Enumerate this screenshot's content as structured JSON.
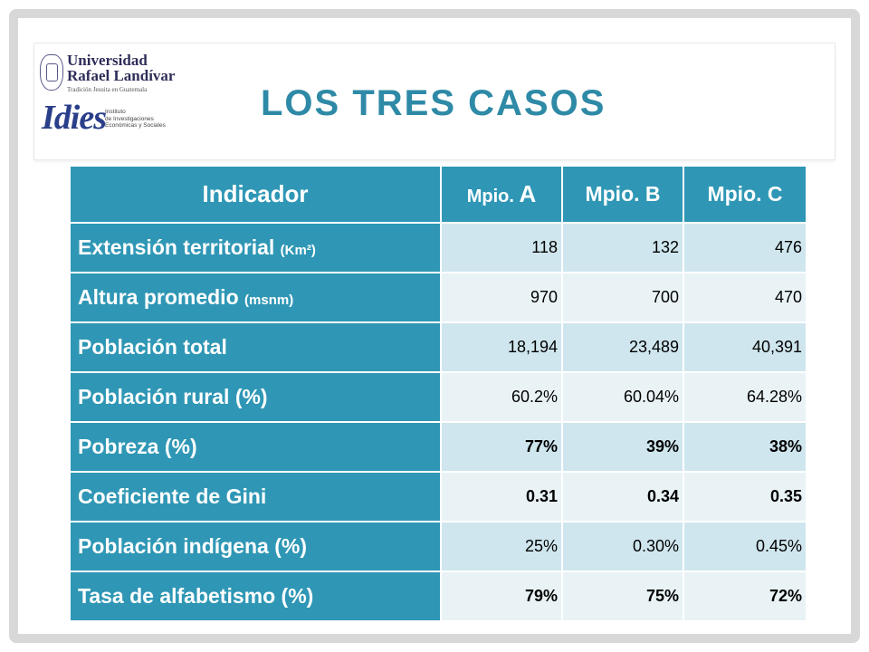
{
  "header": {
    "university_name_line1": "Universidad",
    "university_name_line2": "Rafael Landívar",
    "university_tagline": "Tradición Jesuita en Guatemala",
    "institute_logo": "Idies",
    "institute_sub_line1": "Instituto",
    "institute_sub_line2": "de Investigaciones",
    "institute_sub_line3": "Económicas y Sociales",
    "title": "LOS TRES CASOS"
  },
  "table": {
    "headers": {
      "indicator": "Indicador",
      "a_prefix": "Mpio.",
      "a_letter": "A",
      "b": "Mpio. B",
      "c": "Mpio. C"
    },
    "rows": [
      {
        "label": "Extensión territorial ",
        "unit": "(Km²)",
        "a": "118",
        "b": "132",
        "c": "476"
      },
      {
        "label": "Altura promedio ",
        "unit": "(msnm)",
        "a": "970",
        "b": "700",
        "c": "470"
      },
      {
        "label": "Población total",
        "unit": "",
        "a": "18,194",
        "b": "23,489",
        "c": "40,391"
      },
      {
        "label": "Población rural (%)",
        "unit": "",
        "a": "60.2%",
        "b": "60.04%",
        "c": "64.28%"
      },
      {
        "label": "Pobreza (%)",
        "unit": "",
        "a": "77%",
        "b": "39%",
        "c": "38%"
      },
      {
        "label": "Coeficiente de Gini",
        "unit": "",
        "a": "0.31",
        "b": "0.34",
        "c": "0.35"
      },
      {
        "label": "Población indígena (%)",
        "unit": "",
        "a": "25%",
        "b": "0.30%",
        "c": "0.45%"
      },
      {
        "label": "Tasa de alfabetismo (%)",
        "unit": "",
        "a": "79%",
        "b": "75%",
        "c": "72%"
      }
    ]
  },
  "colors": {
    "accent": "#2f97b5",
    "title": "#2e8aa6",
    "row_odd": "#cfe6ee",
    "row_even": "#e9f3f6"
  }
}
